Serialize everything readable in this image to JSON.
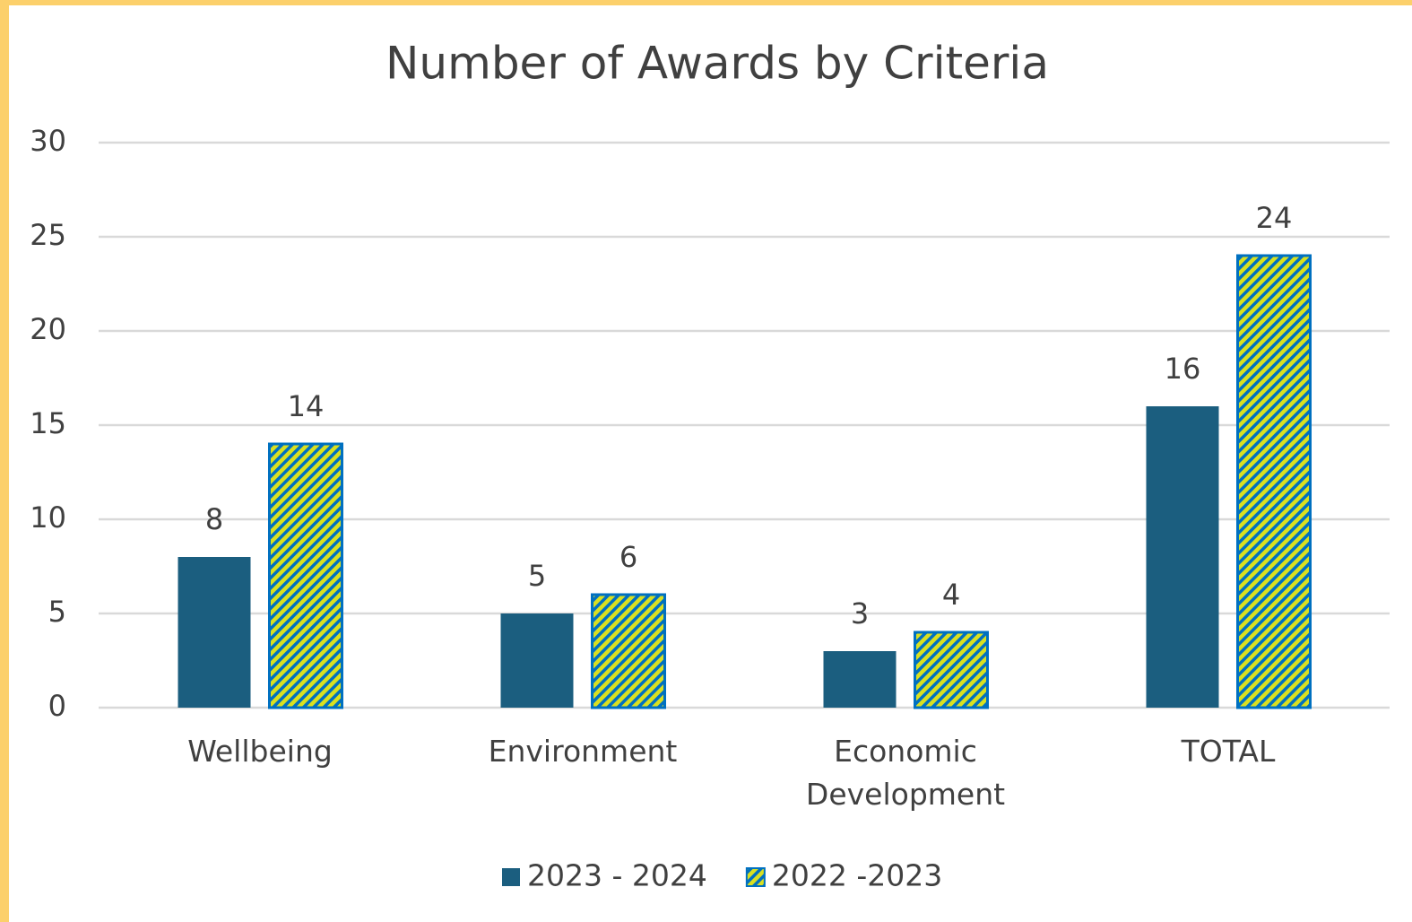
{
  "chart_data": {
    "type": "bar",
    "title": "Number of Awards by Criteria",
    "categories": [
      "Wellbeing",
      "Environment",
      "Economic Development",
      "TOTAL"
    ],
    "series": [
      {
        "name": "2023 - 2024",
        "color": "#1b5e7f",
        "values": [
          8,
          5,
          3,
          16
        ]
      },
      {
        "name": "2022 -2023",
        "color": "#d9e021",
        "edge": "#0070c0",
        "hatch": true,
        "values": [
          14,
          6,
          4,
          24
        ]
      }
    ],
    "ylim": [
      0,
      30
    ],
    "yticks": [
      0,
      5,
      10,
      15,
      20,
      25,
      30
    ],
    "grid": true,
    "legend": "bottom"
  }
}
